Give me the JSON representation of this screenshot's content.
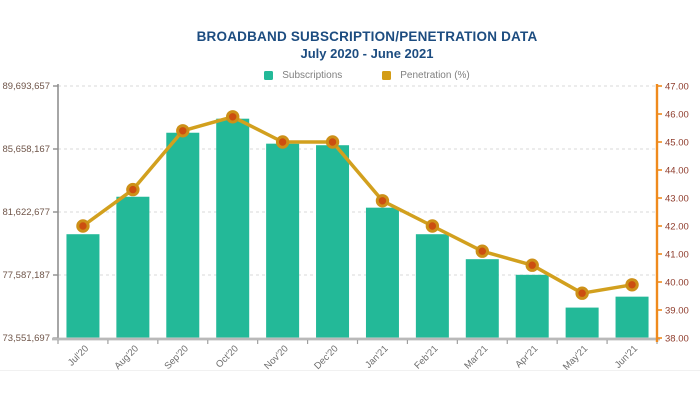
{
  "header": {
    "title": "BROADBAND SUBSCRIPTION/PENETRATION DATA",
    "subtitle": "July 2020 - June 2021"
  },
  "legend": [
    {
      "label": "Subscriptions",
      "color": "#23b998"
    },
    {
      "label": "Penetration (%)",
      "color": "#d39c16"
    }
  ],
  "colors": {
    "bar": "#23b998",
    "line": "#d2a01e",
    "marker_fill": "#cc4e10",
    "title": "#1c4c80",
    "left_axis_label": "#6f5549",
    "right_axis_label": "#8e3b2b",
    "right_axis_line": "#ef8a1d",
    "x_axis_label": "#6e6e6e"
  },
  "chart_data": {
    "type": "bar",
    "subtype": "combo-bar-line-dual-axis",
    "title": "BROADBAND SUBSCRIPTION/PENETRATION DATA",
    "subtitle": "July 2020 - June 2021",
    "xlabel": "",
    "ylabel_left": "",
    "ylabel_right": "",
    "grid": "horizontal-dashed",
    "legend_position": "top",
    "legend": [
      "Subscriptions",
      "Penetration (%)"
    ],
    "categories": [
      "Jul'20",
      "Aug'20",
      "Sep'20",
      "Oct'20",
      "Nov'20",
      "Dec'20",
      "Jan'21",
      "Feb'21",
      "Mar'21",
      "Apr'21",
      "May'21",
      "Jun'21"
    ],
    "series": [
      {
        "name": "Subscriptions",
        "type": "bar",
        "axis": "left",
        "color": "#23b998",
        "values": [
          80200000,
          82600000,
          86700000,
          87600000,
          86000000,
          85900000,
          81900000,
          80200000,
          78600000,
          77600000,
          75500000,
          76200000
        ]
      },
      {
        "name": "Penetration (%)",
        "type": "line",
        "axis": "right",
        "color": "#d2a01e",
        "marker_fill": "#cc4e10",
        "marker_ring": "#cd9018",
        "values": [
          42.0,
          43.3,
          45.4,
          45.9,
          45.0,
          45.0,
          42.9,
          42.0,
          41.1,
          40.6,
          39.6,
          39.9
        ]
      }
    ],
    "left_axis": {
      "min": 73551697,
      "max": 89693657,
      "ticks": [
        {
          "label": "89,693,657",
          "value": 89693657
        },
        {
          "label": "85,658,167",
          "value": 85658167
        },
        {
          "label": "81,622,677",
          "value": 81622677
        },
        {
          "label": "77,587,187",
          "value": 77587187
        },
        {
          "label": "73,551,697",
          "value": 73551697
        }
      ]
    },
    "right_axis": {
      "min": 38,
      "max": 47,
      "step": 1,
      "ticks": [
        {
          "label": "47.00",
          "value": 47
        },
        {
          "label": "46.00",
          "value": 46
        },
        {
          "label": "45.00",
          "value": 45
        },
        {
          "label": "44.00",
          "value": 44
        },
        {
          "label": "43.00",
          "value": 43
        },
        {
          "label": "42.00",
          "value": 42
        },
        {
          "label": "41.00",
          "value": 41
        },
        {
          "label": "40.00",
          "value": 40
        },
        {
          "label": "39.00",
          "value": 39
        },
        {
          "label": "38.00",
          "value": 38
        }
      ]
    }
  }
}
